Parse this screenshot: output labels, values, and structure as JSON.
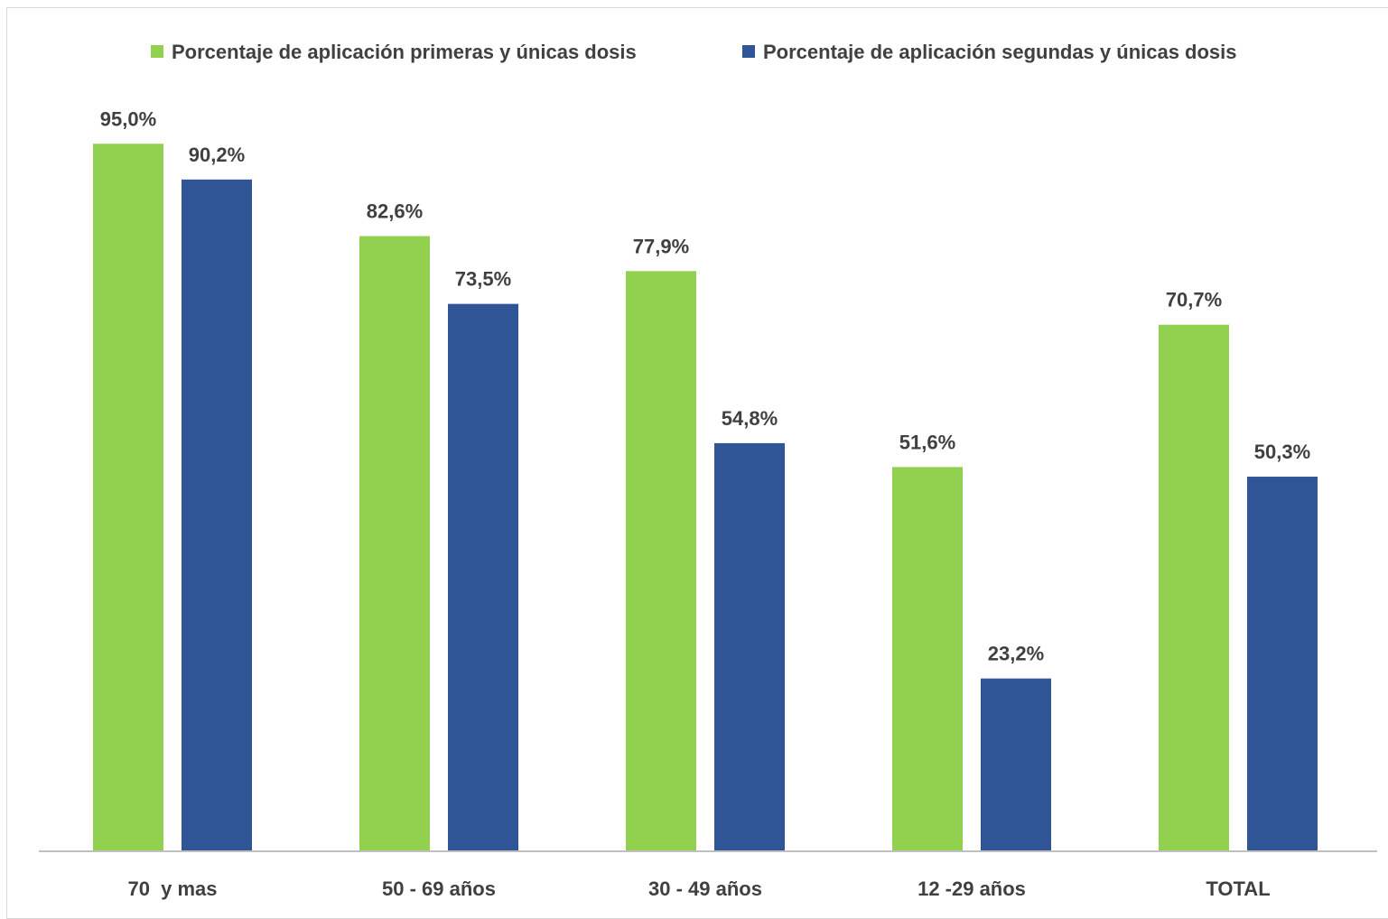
{
  "chart_data": {
    "type": "bar",
    "title": "",
    "categories": [
      "70  y mas",
      "50 - 69 años",
      "30 - 49 años",
      "12 -29 años",
      "TOTAL"
    ],
    "series": [
      {
        "name": "Porcentaje de aplicación primeras y únicas dosis",
        "color": "#92d050",
        "values": [
          95.0,
          82.6,
          77.9,
          51.6,
          70.7
        ],
        "labels": [
          "95,0%",
          "82,6%",
          "77,9%",
          "51,6%",
          "70,7%"
        ]
      },
      {
        "name": "Porcentaje de aplicación segundas y únicas dosis",
        "color": "#2f5597",
        "values": [
          90.2,
          73.5,
          54.8,
          23.2,
          50.3
        ],
        "labels": [
          "90,2%",
          "73,5%",
          "54,8%",
          "23,2%",
          "50,3%"
        ]
      }
    ],
    "ylim": [
      0,
      100
    ],
    "grid": false,
    "legend_position": "top",
    "xlabel": "",
    "ylabel": ""
  }
}
